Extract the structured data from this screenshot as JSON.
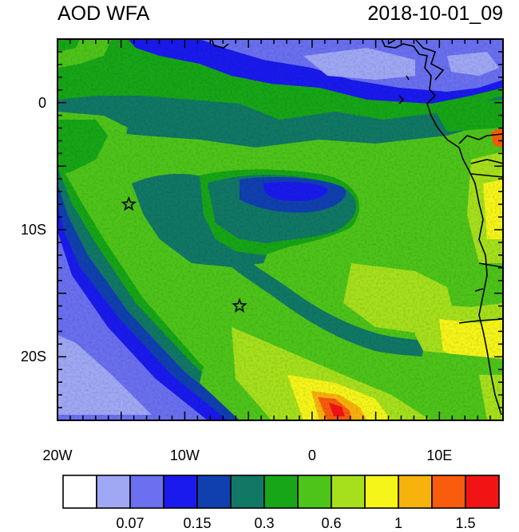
{
  "title_left": "AOD WFA",
  "title_right": "2018-10-01_09",
  "axes": {
    "x_ticks": [
      {
        "value": -20,
        "label": "20W"
      },
      {
        "value": -10,
        "label": "10W"
      },
      {
        "value": 0,
        "label": "0"
      },
      {
        "value": 10,
        "label": "10E"
      }
    ],
    "y_ticks": [
      {
        "value": 0,
        "label": "0"
      },
      {
        "value": -10,
        "label": "10S"
      },
      {
        "value": -20,
        "label": "20S"
      }
    ],
    "lon_range": [
      -20,
      15
    ],
    "lat_range": [
      -25,
      5
    ]
  },
  "colorbar": {
    "colors": [
      "#ffffff",
      "#a0a8f5",
      "#6a70f0",
      "#1a1aee",
      "#1040b0",
      "#117866",
      "#17a617",
      "#4ec41a",
      "#a6e01c",
      "#f5f51a",
      "#f8b20c",
      "#f85c0c",
      "#f21414"
    ],
    "labels": [
      {
        "after_box": 2,
        "text": "0.07"
      },
      {
        "after_box": 4,
        "text": "0.15"
      },
      {
        "after_box": 6,
        "text": "0.3"
      },
      {
        "after_box": 8,
        "text": "0.6"
      },
      {
        "after_box": 10,
        "text": "1"
      },
      {
        "after_box": 12,
        "text": "1.5"
      }
    ]
  },
  "markers": [
    {
      "lon": -14.4,
      "lat": -8.0,
      "symbol": "star"
    },
    {
      "lon": -5.7,
      "lat": -16.0,
      "symbol": "star"
    }
  ]
}
